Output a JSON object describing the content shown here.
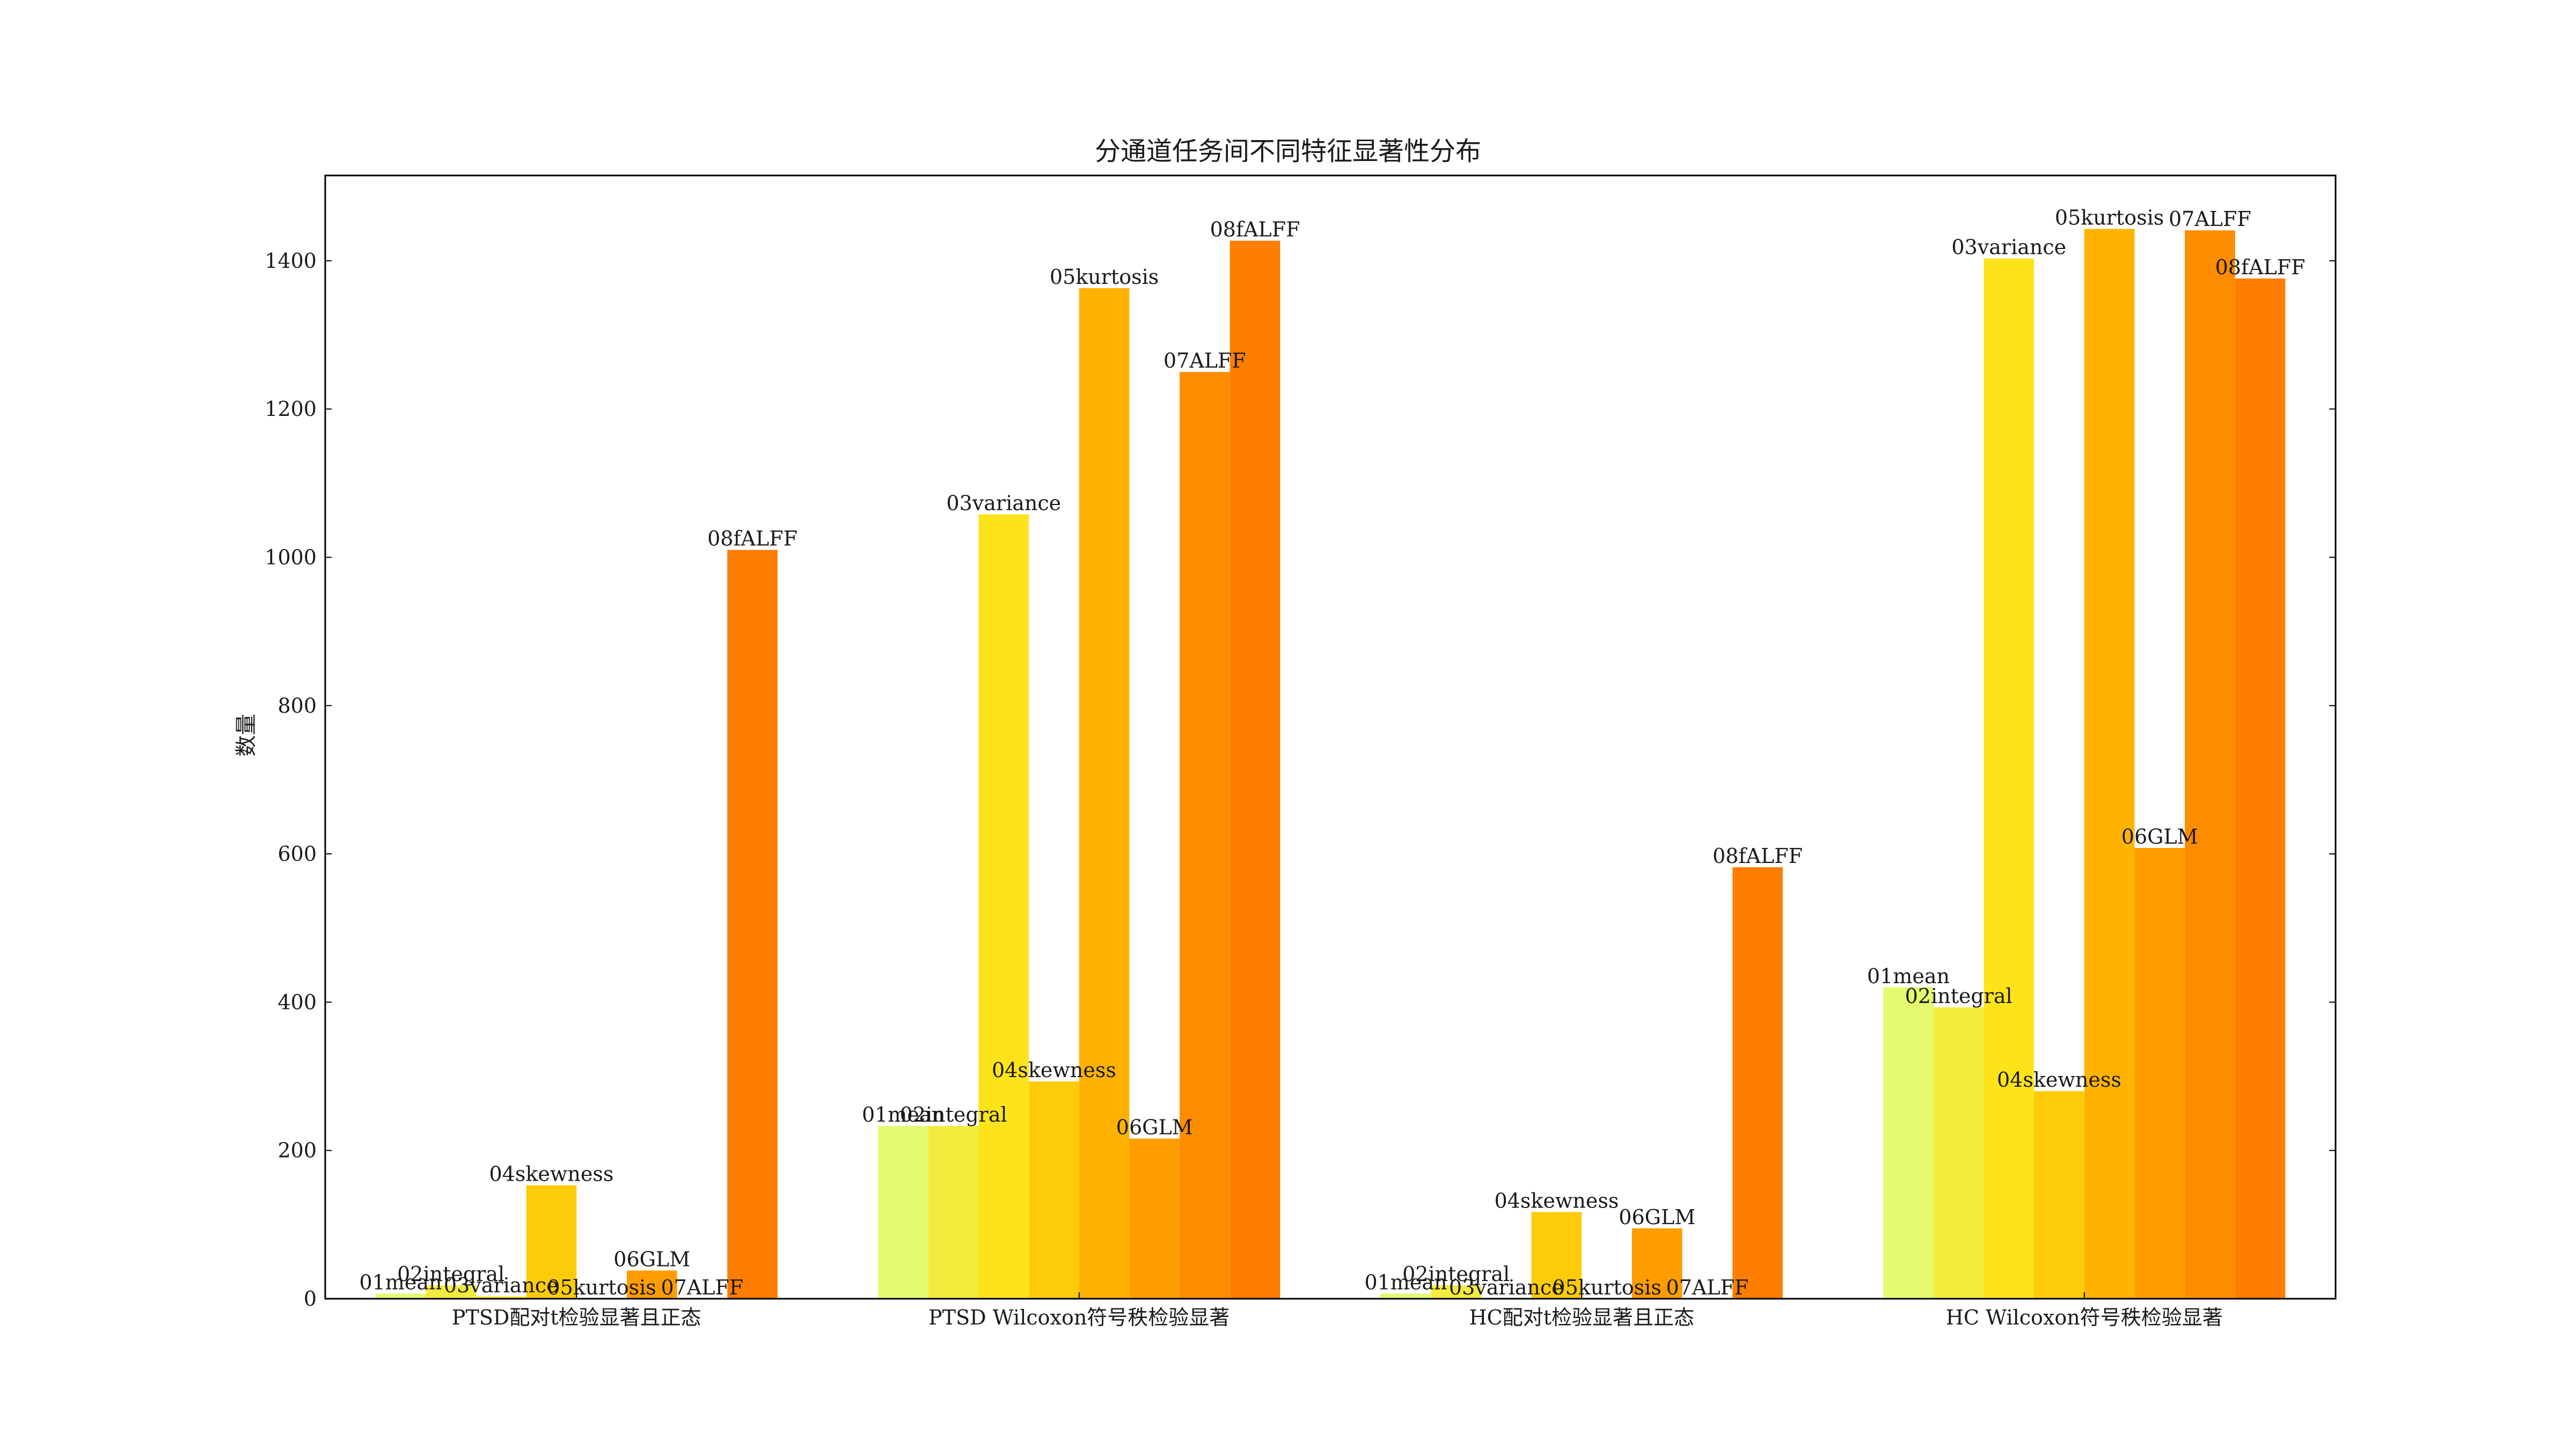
{
  "chart_data": {
    "type": "bar",
    "title": "分通道任务间不同特征显著性分布",
    "xlabel": "",
    "ylabel": "数量",
    "ylim": [
      0,
      1515
    ],
    "yticks": [
      0,
      200,
      400,
      600,
      800,
      1000,
      1200,
      1400
    ],
    "grid": false,
    "categories": [
      "PTSD配对t检验显著且正态",
      "PTSD Wilcoxon符号秩检验显著",
      "HC配对t检验显著且正态",
      "HC Wilcoxon符号秩检验显著"
    ],
    "series": [
      {
        "name": "01mean",
        "color": "#e5fa6e",
        "values": [
          7,
          233,
          7,
          420
        ]
      },
      {
        "name": "02integral",
        "color": "#f4ec3c",
        "values": [
          18,
          233,
          18,
          393
        ]
      },
      {
        "name": "03variance",
        "color": "#fde31a",
        "values": [
          3,
          1058,
          0,
          1403
        ]
      },
      {
        "name": "04skewness",
        "color": "#fdcb08",
        "values": [
          153,
          293,
          117,
          280
        ]
      },
      {
        "name": "05kurtosis",
        "color": "#ffb300",
        "values": [
          0,
          1363,
          0,
          1443
        ]
      },
      {
        "name": "06GLM",
        "color": "#fe9c00",
        "values": [
          38,
          216,
          95,
          608
        ]
      },
      {
        "name": "07ALFF",
        "color": "#fe8c00",
        "values": [
          0,
          1250,
          0,
          1441
        ]
      },
      {
        "name": "08fALFF",
        "color": "#fd7e00",
        "values": [
          1010,
          1427,
          582,
          1376
        ]
      }
    ]
  }
}
